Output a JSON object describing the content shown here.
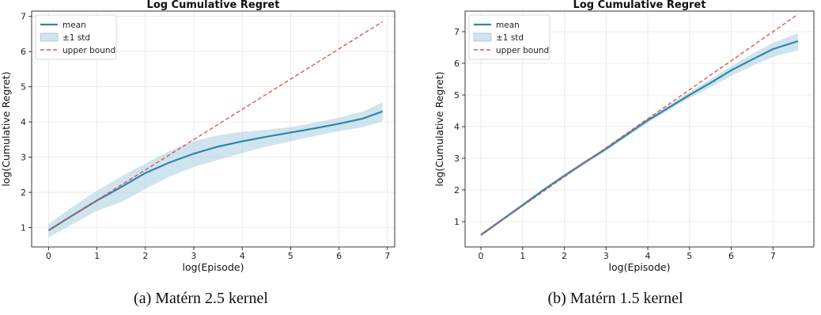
{
  "chart_data": [
    {
      "type": "line",
      "title": "Log Cumulative Regret",
      "xlabel": "log(Episode)",
      "ylabel": "log(Cumulative Regret)",
      "xlim": [
        -0.35,
        7.15
      ],
      "ylim": [
        0.45,
        7.15
      ],
      "xticks": [
        0,
        1,
        2,
        3,
        4,
        5,
        6,
        7
      ],
      "yticks": [
        1,
        2,
        3,
        4,
        5,
        6,
        7
      ],
      "grid": true,
      "legend_position": "top-left",
      "legend": [
        "mean",
        "±1 std",
        "upper bound"
      ],
      "series": [
        {
          "name": "mean",
          "color": "#2e86ab",
          "x": [
            0,
            0.5,
            1,
            1.5,
            2,
            2.5,
            3,
            3.5,
            4,
            4.5,
            5,
            5.5,
            6,
            6.5,
            6.9
          ],
          "y": [
            0.92,
            1.35,
            1.77,
            2.15,
            2.55,
            2.85,
            3.1,
            3.3,
            3.45,
            3.58,
            3.7,
            3.82,
            3.95,
            4.1,
            4.3
          ]
        },
        {
          "name": "±1 std",
          "color": "#a9cde0",
          "x": [
            0,
            0.5,
            1,
            1.5,
            2,
            2.5,
            3,
            3.5,
            4,
            4.5,
            5,
            5.5,
            6,
            6.5,
            6.9
          ],
          "upper": [
            1.1,
            1.6,
            2.05,
            2.45,
            2.82,
            3.18,
            3.45,
            3.62,
            3.72,
            3.78,
            3.85,
            3.98,
            4.12,
            4.3,
            4.55
          ],
          "lower": [
            0.72,
            1.1,
            1.48,
            1.72,
            2.1,
            2.45,
            2.72,
            2.92,
            3.12,
            3.3,
            3.45,
            3.6,
            3.74,
            3.85,
            4.02
          ]
        },
        {
          "name": "upper bound",
          "color": "#e05555",
          "dashed": true,
          "x": [
            0,
            6.9
          ],
          "y": [
            0.92,
            6.85
          ]
        }
      ],
      "caption": "(a) Matérn 2.5 kernel"
    },
    {
      "type": "line",
      "title": "Log Cumulative Regret",
      "xlabel": "log(Episode)",
      "ylabel": "log(Cumulative Regret)",
      "xlim": [
        -0.38,
        7.98
      ],
      "ylim": [
        0.2,
        7.65
      ],
      "xticks": [
        0,
        1,
        2,
        3,
        4,
        5,
        6,
        7
      ],
      "yticks": [
        1,
        2,
        3,
        4,
        5,
        6,
        7
      ],
      "grid": true,
      "legend_position": "top-left",
      "legend": [
        "mean",
        "±1 std",
        "upper bound"
      ],
      "series": [
        {
          "name": "mean",
          "color": "#2e86ab",
          "x": [
            0,
            0.5,
            1,
            1.5,
            2,
            2.5,
            3,
            3.5,
            4,
            4.5,
            5,
            5.5,
            6,
            6.5,
            7,
            7.6
          ],
          "y": [
            0.58,
            1.05,
            1.52,
            2.0,
            2.45,
            2.88,
            3.3,
            3.75,
            4.2,
            4.6,
            5.0,
            5.38,
            5.78,
            6.12,
            6.45,
            6.7
          ]
        },
        {
          "name": "±1 std",
          "color": "#a9cde0",
          "x": [
            0,
            0.5,
            1,
            1.5,
            2,
            2.5,
            3,
            3.5,
            4,
            4.5,
            5,
            5.5,
            6,
            6.5,
            7,
            7.6
          ],
          "upper": [
            0.63,
            1.1,
            1.57,
            2.05,
            2.5,
            2.94,
            3.37,
            3.82,
            4.28,
            4.68,
            5.1,
            5.5,
            5.92,
            6.3,
            6.65,
            6.95
          ],
          "lower": [
            0.53,
            1.0,
            1.47,
            1.95,
            2.4,
            2.82,
            3.23,
            3.68,
            4.12,
            4.52,
            4.9,
            5.24,
            5.6,
            5.92,
            6.2,
            6.42
          ]
        },
        {
          "name": "upper bound",
          "color": "#e05555",
          "dashed": true,
          "x": [
            0,
            7.6
          ],
          "y": [
            0.58,
            7.55
          ]
        }
      ],
      "caption": "(b) Matérn 1.5 kernel"
    }
  ]
}
